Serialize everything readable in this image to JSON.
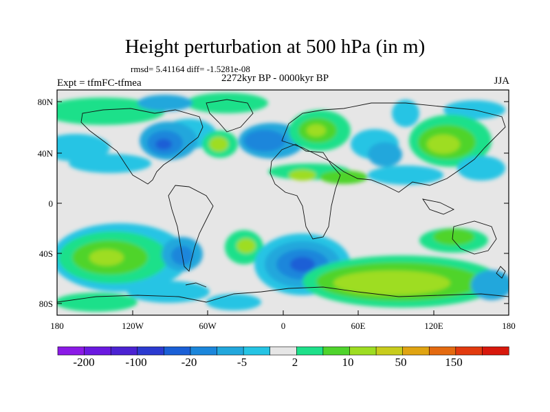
{
  "title": "Height perturbation at 500 hPa (in m)",
  "stats": "rmsd= 5.41164 diff= -1.5281e-08",
  "period": "2272kyr BP - 0000kyr BP",
  "experiment": "Expt = tfmFC-tfmea",
  "season": "JJA",
  "lat_ticks": [
    "80N",
    "40N",
    "0",
    "40S",
    "80S"
  ],
  "lon_ticks": [
    "180",
    "120W",
    "60W",
    "0",
    "60E",
    "120E",
    "180"
  ],
  "colorbar": {
    "colors": [
      "#8b1ae6",
      "#6a19e0",
      "#4b22d2",
      "#2b3ad0",
      "#1a5fd6",
      "#1b86db",
      "#22a7dc",
      "#25c4e4",
      "#e6e6e6",
      "#1ee08a",
      "#4fd42c",
      "#9edd22",
      "#c8cc1c",
      "#e0a412",
      "#e46a10",
      "#e23a0e",
      "#d8180c"
    ],
    "labels": [
      "-200",
      "-100",
      "-20",
      "-5",
      "2",
      "10",
      "50",
      "150"
    ]
  }
}
